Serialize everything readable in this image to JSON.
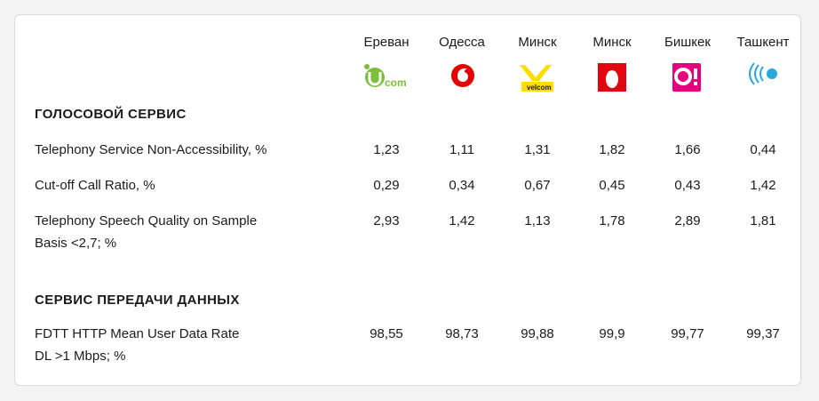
{
  "cities": [
    "Ереван",
    "Одесса",
    "Минск",
    "Минск",
    "Бишкек",
    "Ташкент"
  ],
  "logos": [
    {
      "icon": "ucom-logo",
      "text": "com",
      "color": "#8cc63f"
    },
    {
      "icon": "vodafone-logo",
      "color": "#e60000"
    },
    {
      "icon": "velcom-logo",
      "text": "velcom",
      "color": "#ffdd00"
    },
    {
      "icon": "mts-egg-logo",
      "color": "#e30611"
    },
    {
      "icon": "o-logo",
      "text": "O!",
      "color": "#e6007e"
    },
    {
      "icon": "beeline-waves-logo",
      "color": "#29a8e0"
    }
  ],
  "sections": {
    "voice": "ГОЛОСОВОЙ СЕРВИС",
    "data": "СЕРВИС ПЕРЕДАЧИ ДАННЫХ"
  },
  "rows": [
    {
      "label_1": "Telephony Service Non-Accessibility, %",
      "label_2": "",
      "values": [
        "1,23",
        "1,11",
        "1,31",
        "1,82",
        "1,66",
        "0,44"
      ]
    },
    {
      "label_1": "Cut-off Call Ratio, %",
      "label_2": "",
      "values": [
        "0,29",
        "0,34",
        "0,67",
        "0,45",
        "0,43",
        "1,42"
      ]
    },
    {
      "label_1": "Telephony Speech Quality on Sample",
      "label_2": "Basis <2,7; %",
      "values": [
        "2,93",
        "1,42",
        "1,13",
        "1,78",
        "2,89",
        "1,81"
      ]
    },
    {
      "label_1": "FDTT HTTP Mean User Data Rate",
      "label_2": "DL >1 Mbps; %",
      "values": [
        "98,55",
        "98,73",
        "99,88",
        "99,9",
        "99,77",
        "99,37"
      ]
    }
  ]
}
